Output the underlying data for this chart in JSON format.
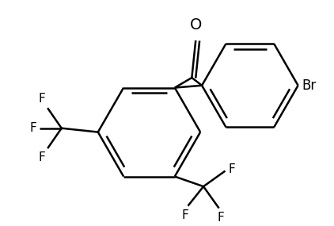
{
  "background_color": "#ffffff",
  "line_color": "#000000",
  "line_width": 1.8,
  "font_size": 11,
  "text_color": "#000000",
  "figsize": [
    4.22,
    2.85
  ],
  "dpi": 100,
  "xlim": [
    0,
    422
  ],
  "ylim": [
    0,
    285
  ]
}
